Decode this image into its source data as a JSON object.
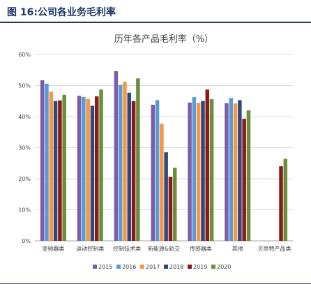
{
  "figure": {
    "title": "图 16:公司各业务毛利率"
  },
  "colors": {
    "brand": "#1f3864",
    "grid": "#d9d9d9",
    "axis": "#a6a6a6",
    "text": "#404040"
  },
  "chart_data": {
    "type": "bar",
    "title": "历年各产品毛利率（%）",
    "xlabel": "",
    "ylabel": "",
    "ylim": [
      0,
      60
    ],
    "yticks": [
      0,
      10,
      20,
      30,
      40,
      50,
      60
    ],
    "ytick_labels": [
      "0%",
      "10%",
      "20%",
      "30%",
      "40%",
      "50%",
      "60%"
    ],
    "grid": true,
    "legend_position": "bottom",
    "categories": [
      "变频器类",
      "运动控制类",
      "控制技术类",
      "新能源&轨交",
      "传感器类",
      "其他",
      "贝思特产品类"
    ],
    "series": [
      {
        "name": "2015",
        "color": "#7b5ea7",
        "values": [
          51.7,
          46.7,
          54.6,
          43.8,
          44.5,
          44.3,
          null
        ]
      },
      {
        "name": "2016",
        "color": "#5b9bd5",
        "values": [
          50.6,
          46.3,
          50.2,
          45.3,
          46.3,
          46.0,
          null
        ]
      },
      {
        "name": "2017",
        "color": "#f79646",
        "values": [
          48.0,
          45.7,
          51.2,
          37.7,
          44.4,
          44.2,
          null
        ]
      },
      {
        "name": "2018",
        "color": "#2e4a7a",
        "values": [
          45.0,
          43.5,
          47.7,
          28.5,
          45.0,
          45.3,
          null
        ]
      },
      {
        "name": "2019",
        "color": "#8b1a1a",
        "values": [
          45.2,
          46.5,
          45.0,
          20.6,
          48.7,
          39.3,
          24.0
        ]
      },
      {
        "name": "2020",
        "color": "#6b8e3a",
        "values": [
          47.0,
          48.7,
          52.3,
          23.5,
          45.6,
          42.0,
          26.4
        ]
      }
    ]
  }
}
